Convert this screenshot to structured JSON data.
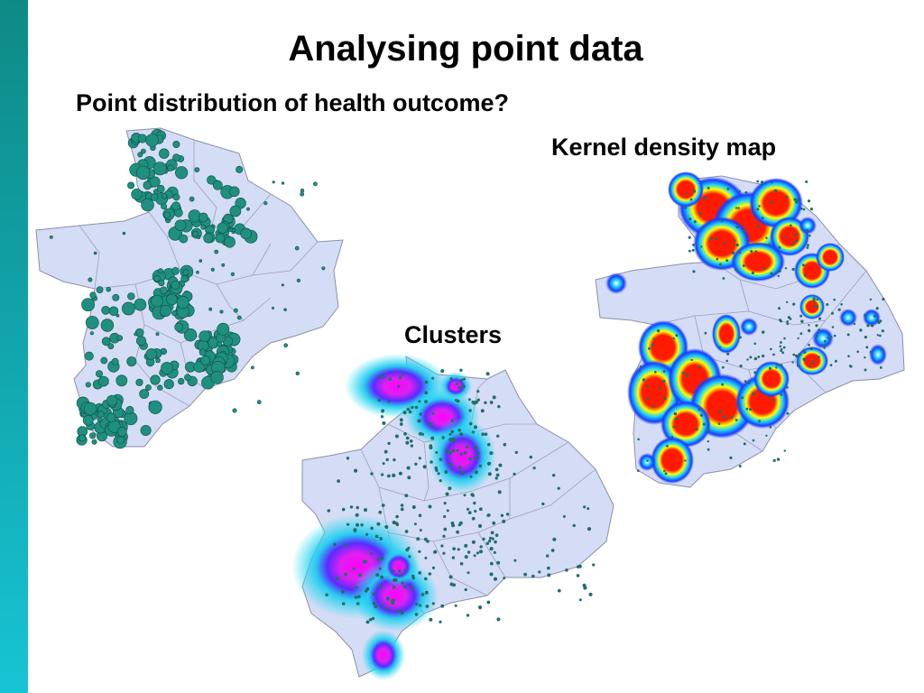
{
  "slide": {
    "title": "Analysing point data",
    "subtitle": "Point distribution of health outcome?",
    "labels": {
      "kernel_density": "Kernel density map",
      "clusters": "Clusters"
    }
  },
  "colors": {
    "accent_bar_top": "#0e8a86",
    "accent_bar_bottom": "#17c4d4",
    "region_fill": "#d5dcf5",
    "region_stroke": "#8a90a8",
    "point_marker": "#1f8f7f",
    "cluster_outer": "#27e3ee",
    "cluster_inner": "#ff00ff",
    "density_high": "#ff1a00",
    "density_mid": "#ffff00",
    "density_low": "#1a3cff"
  },
  "maps": {
    "point_distribution": {
      "symbol": "graduated-circles"
    },
    "clusters": {
      "symbol": "cluster-halos"
    },
    "kernel_density": {
      "symbol": "density-surface"
    }
  }
}
